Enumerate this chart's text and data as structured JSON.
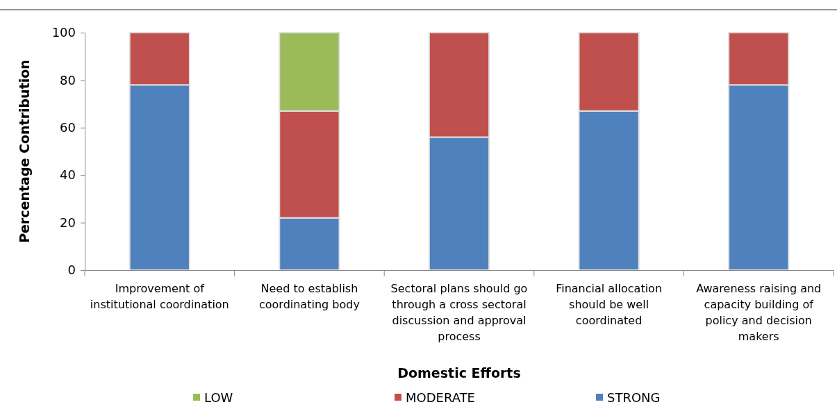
{
  "chart_data": {
    "type": "bar",
    "stacked": true,
    "xlabel": "Domestic Efforts",
    "ylabel": "Percentage Contribution",
    "categories": [
      "Improvement of institutional coordination",
      "Need to establish coordinating body",
      "Sectoral plans should go through a cross sectoral discussion and approval process",
      "Financial allocation should be well coordinated",
      "Awareness raising and capacity building of policy and decision makers"
    ],
    "series": [
      {
        "name": "STRONG",
        "color": "#4f81bd",
        "values": [
          78,
          22,
          56,
          67,
          78
        ]
      },
      {
        "name": "MODERATE",
        "color": "#c0504d",
        "values": [
          22,
          45,
          44,
          33,
          22
        ]
      },
      {
        "name": "LOW",
        "color": "#9bbb59",
        "values": [
          null,
          33,
          null,
          null,
          null
        ]
      }
    ],
    "ylim": [
      0,
      100
    ],
    "yticks": [
      0,
      20,
      40,
      60,
      80,
      100
    ],
    "grid": false,
    "legend": "bottom"
  }
}
